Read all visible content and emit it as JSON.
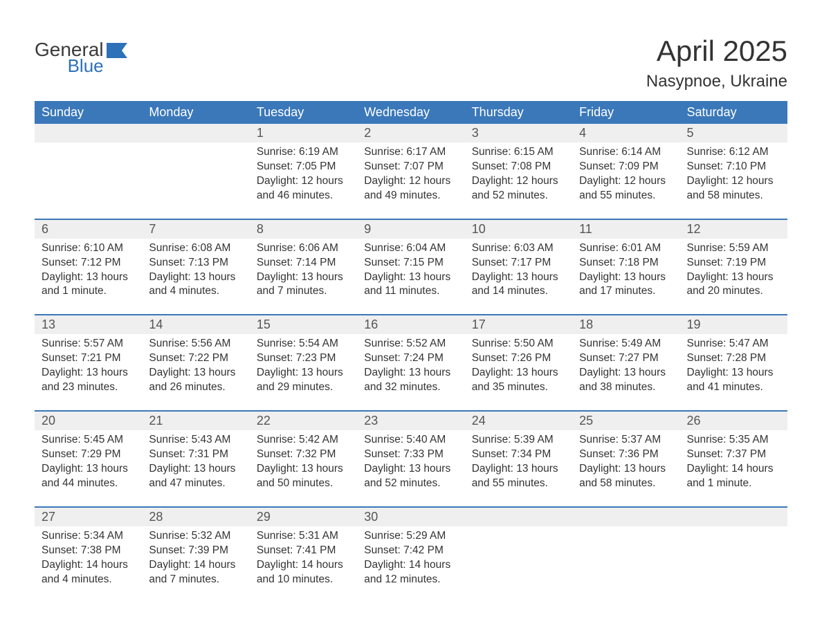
{
  "logo": {
    "word1": "General",
    "word2": "Blue"
  },
  "title": "April 2025",
  "location": "Nasypnoe, Ukraine",
  "colors": {
    "header_bg": "#3a78b9",
    "header_text": "#ffffff",
    "date_strip_bg": "#efefef",
    "week_border": "#3a78b9",
    "body_text": "#333333",
    "logo_gray": "#3a3a3a",
    "logo_blue": "#2d71b8",
    "background": "#ffffff"
  },
  "typography": {
    "title_fontsize": 42,
    "location_fontsize": 24,
    "dayheader_fontsize": 18,
    "date_fontsize": 18,
    "cell_fontsize": 15.5
  },
  "day_headers": [
    "Sunday",
    "Monday",
    "Tuesday",
    "Wednesday",
    "Thursday",
    "Friday",
    "Saturday"
  ],
  "weeks": [
    [
      {
        "date": "",
        "sunrise": "",
        "sunset": "",
        "daylight": ""
      },
      {
        "date": "",
        "sunrise": "",
        "sunset": "",
        "daylight": ""
      },
      {
        "date": "1",
        "sunrise": "Sunrise: 6:19 AM",
        "sunset": "Sunset: 7:05 PM",
        "daylight": "Daylight: 12 hours and 46 minutes."
      },
      {
        "date": "2",
        "sunrise": "Sunrise: 6:17 AM",
        "sunset": "Sunset: 7:07 PM",
        "daylight": "Daylight: 12 hours and 49 minutes."
      },
      {
        "date": "3",
        "sunrise": "Sunrise: 6:15 AM",
        "sunset": "Sunset: 7:08 PM",
        "daylight": "Daylight: 12 hours and 52 minutes."
      },
      {
        "date": "4",
        "sunrise": "Sunrise: 6:14 AM",
        "sunset": "Sunset: 7:09 PM",
        "daylight": "Daylight: 12 hours and 55 minutes."
      },
      {
        "date": "5",
        "sunrise": "Sunrise: 6:12 AM",
        "sunset": "Sunset: 7:10 PM",
        "daylight": "Daylight: 12 hours and 58 minutes."
      }
    ],
    [
      {
        "date": "6",
        "sunrise": "Sunrise: 6:10 AM",
        "sunset": "Sunset: 7:12 PM",
        "daylight": "Daylight: 13 hours and 1 minute."
      },
      {
        "date": "7",
        "sunrise": "Sunrise: 6:08 AM",
        "sunset": "Sunset: 7:13 PM",
        "daylight": "Daylight: 13 hours and 4 minutes."
      },
      {
        "date": "8",
        "sunrise": "Sunrise: 6:06 AM",
        "sunset": "Sunset: 7:14 PM",
        "daylight": "Daylight: 13 hours and 7 minutes."
      },
      {
        "date": "9",
        "sunrise": "Sunrise: 6:04 AM",
        "sunset": "Sunset: 7:15 PM",
        "daylight": "Daylight: 13 hours and 11 minutes."
      },
      {
        "date": "10",
        "sunrise": "Sunrise: 6:03 AM",
        "sunset": "Sunset: 7:17 PM",
        "daylight": "Daylight: 13 hours and 14 minutes."
      },
      {
        "date": "11",
        "sunrise": "Sunrise: 6:01 AM",
        "sunset": "Sunset: 7:18 PM",
        "daylight": "Daylight: 13 hours and 17 minutes."
      },
      {
        "date": "12",
        "sunrise": "Sunrise: 5:59 AM",
        "sunset": "Sunset: 7:19 PM",
        "daylight": "Daylight: 13 hours and 20 minutes."
      }
    ],
    [
      {
        "date": "13",
        "sunrise": "Sunrise: 5:57 AM",
        "sunset": "Sunset: 7:21 PM",
        "daylight": "Daylight: 13 hours and 23 minutes."
      },
      {
        "date": "14",
        "sunrise": "Sunrise: 5:56 AM",
        "sunset": "Sunset: 7:22 PM",
        "daylight": "Daylight: 13 hours and 26 minutes."
      },
      {
        "date": "15",
        "sunrise": "Sunrise: 5:54 AM",
        "sunset": "Sunset: 7:23 PM",
        "daylight": "Daylight: 13 hours and 29 minutes."
      },
      {
        "date": "16",
        "sunrise": "Sunrise: 5:52 AM",
        "sunset": "Sunset: 7:24 PM",
        "daylight": "Daylight: 13 hours and 32 minutes."
      },
      {
        "date": "17",
        "sunrise": "Sunrise: 5:50 AM",
        "sunset": "Sunset: 7:26 PM",
        "daylight": "Daylight: 13 hours and 35 minutes."
      },
      {
        "date": "18",
        "sunrise": "Sunrise: 5:49 AM",
        "sunset": "Sunset: 7:27 PM",
        "daylight": "Daylight: 13 hours and 38 minutes."
      },
      {
        "date": "19",
        "sunrise": "Sunrise: 5:47 AM",
        "sunset": "Sunset: 7:28 PM",
        "daylight": "Daylight: 13 hours and 41 minutes."
      }
    ],
    [
      {
        "date": "20",
        "sunrise": "Sunrise: 5:45 AM",
        "sunset": "Sunset: 7:29 PM",
        "daylight": "Daylight: 13 hours and 44 minutes."
      },
      {
        "date": "21",
        "sunrise": "Sunrise: 5:43 AM",
        "sunset": "Sunset: 7:31 PM",
        "daylight": "Daylight: 13 hours and 47 minutes."
      },
      {
        "date": "22",
        "sunrise": "Sunrise: 5:42 AM",
        "sunset": "Sunset: 7:32 PM",
        "daylight": "Daylight: 13 hours and 50 minutes."
      },
      {
        "date": "23",
        "sunrise": "Sunrise: 5:40 AM",
        "sunset": "Sunset: 7:33 PM",
        "daylight": "Daylight: 13 hours and 52 minutes."
      },
      {
        "date": "24",
        "sunrise": "Sunrise: 5:39 AM",
        "sunset": "Sunset: 7:34 PM",
        "daylight": "Daylight: 13 hours and 55 minutes."
      },
      {
        "date": "25",
        "sunrise": "Sunrise: 5:37 AM",
        "sunset": "Sunset: 7:36 PM",
        "daylight": "Daylight: 13 hours and 58 minutes."
      },
      {
        "date": "26",
        "sunrise": "Sunrise: 5:35 AM",
        "sunset": "Sunset: 7:37 PM",
        "daylight": "Daylight: 14 hours and 1 minute."
      }
    ],
    [
      {
        "date": "27",
        "sunrise": "Sunrise: 5:34 AM",
        "sunset": "Sunset: 7:38 PM",
        "daylight": "Daylight: 14 hours and 4 minutes."
      },
      {
        "date": "28",
        "sunrise": "Sunrise: 5:32 AM",
        "sunset": "Sunset: 7:39 PM",
        "daylight": "Daylight: 14 hours and 7 minutes."
      },
      {
        "date": "29",
        "sunrise": "Sunrise: 5:31 AM",
        "sunset": "Sunset: 7:41 PM",
        "daylight": "Daylight: 14 hours and 10 minutes."
      },
      {
        "date": "30",
        "sunrise": "Sunrise: 5:29 AM",
        "sunset": "Sunset: 7:42 PM",
        "daylight": "Daylight: 14 hours and 12 minutes."
      },
      {
        "date": "",
        "sunrise": "",
        "sunset": "",
        "daylight": ""
      },
      {
        "date": "",
        "sunrise": "",
        "sunset": "",
        "daylight": ""
      },
      {
        "date": "",
        "sunrise": "",
        "sunset": "",
        "daylight": ""
      }
    ]
  ]
}
